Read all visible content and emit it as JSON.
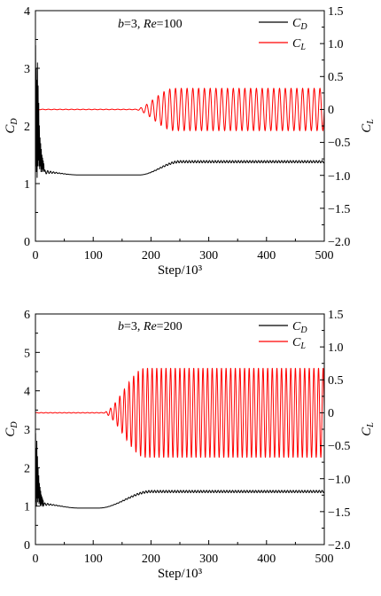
{
  "chart_data": [
    {
      "type": "line",
      "annotation": {
        "b": "b",
        "b_val": "=3, ",
        "re": "Re",
        "re_val": "=100"
      },
      "xlabel": "Step/10³",
      "ylabel_left": "C_D",
      "ylabel_right": "C_L",
      "xlim": [
        0,
        500
      ],
      "ylim_left": [
        0,
        4
      ],
      "ylim_right": [
        -2.0,
        1.5
      ],
      "x_ticks": [
        "0",
        "100",
        "200",
        "300",
        "400",
        "500"
      ],
      "y_ticks_left": [
        "0",
        "1",
        "2",
        "3",
        "4"
      ],
      "y_ticks_right": [
        "−2.0",
        "−1.5",
        "−1.0",
        "−0.5",
        "0",
        "0.5",
        "1.0",
        "1.5"
      ],
      "legend": "top-right",
      "colors": {
        "cd": "#000000",
        "cl": "#ff0000"
      },
      "series": [
        {
          "name": "C_D",
          "axis": "left",
          "initial_spike_max": 3.45,
          "initial_value": 1.2,
          "settle_value": 1.15,
          "final_value": 1.38,
          "transition_start": 180,
          "transition_end": 250,
          "oscillation_amplitude": 0.02
        },
        {
          "name": "C_L",
          "axis": "right",
          "initial_value": 0.0,
          "onset": 170,
          "final_amplitude": 0.32,
          "period": 10
        }
      ]
    },
    {
      "type": "line",
      "annotation": {
        "b": "b",
        "b_val": "=3, ",
        "re": "Re",
        "re_val": "=200"
      },
      "xlabel": "Step/10³",
      "ylabel_left": "C_D",
      "ylabel_right": "C_L",
      "xlim": [
        0,
        500
      ],
      "ylim_left": [
        0,
        6
      ],
      "ylim_right": [
        -2.0,
        1.5
      ],
      "x_ticks": [
        "0",
        "100",
        "200",
        "300",
        "400",
        "500"
      ],
      "y_ticks_left": [
        "0",
        "1",
        "2",
        "3",
        "4",
        "5",
        "6"
      ],
      "y_ticks_right": [
        "−2.0",
        "−1.5",
        "−1.0",
        "−0.5",
        "0",
        "0.5",
        "1.0",
        "1.5"
      ],
      "legend": "top-right",
      "colors": {
        "cd": "#000000",
        "cl": "#ff0000"
      },
      "series": [
        {
          "name": "C_D",
          "axis": "left",
          "initial_spike_max": 2.9,
          "initial_value": 1.05,
          "settle_value": 0.95,
          "final_value": 1.38,
          "transition_start": 110,
          "transition_end": 200,
          "oscillation_amplitude": 0.03
        },
        {
          "name": "C_L",
          "axis": "right",
          "initial_value": 0.0,
          "onset": 115,
          "final_amplitude": 0.68,
          "period": 8
        }
      ]
    }
  ]
}
